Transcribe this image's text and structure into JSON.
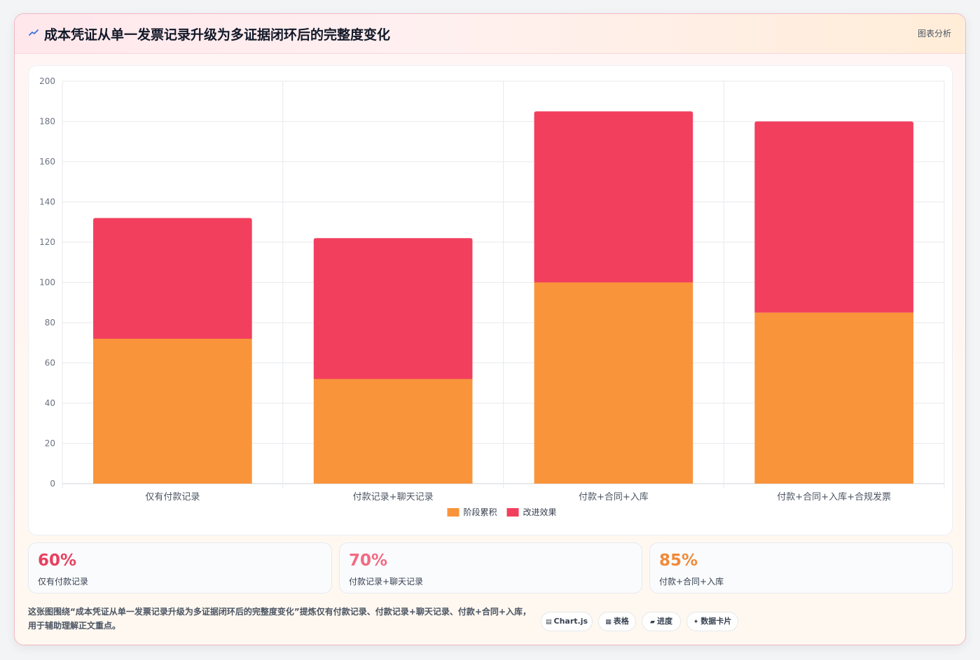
{
  "header": {
    "title": "成本凭证从单一发票记录升级为多证据闭环后的完整度变化",
    "tag": "图表分析"
  },
  "chart_data": {
    "type": "bar",
    "stacked": true,
    "categories": [
      "仅有付款记录",
      "付款记录+聊天记录",
      "付款+合同+入库",
      "付款+合同+入库+合规发票"
    ],
    "series": [
      {
        "name": "阶段累积",
        "values": [
          72,
          52,
          100,
          85
        ],
        "color": "#f9943b"
      },
      {
        "name": "改进效果",
        "values": [
          60,
          70,
          85,
          95
        ],
        "color": "#f23f5e"
      }
    ],
    "ylim": [
      0,
      200
    ],
    "yticks": [
      0,
      20,
      40,
      60,
      80,
      100,
      120,
      140,
      160,
      180,
      200
    ],
    "grid": true,
    "legend_position": "bottom"
  },
  "stats": [
    {
      "value": "60%",
      "label": "仅有付款记录",
      "color": "#e8405f"
    },
    {
      "value": "70%",
      "label": "付款记录+聊天记录",
      "color": "#f26a82"
    },
    {
      "value": "85%",
      "label": "付款+合同+入库",
      "color": "#f08a3a"
    }
  ],
  "description": "这张图围绕“成本凭证从单一发票记录升级为多证据闭环后的完整度变化”提炼仅有付款记录、付款记录+聊天记录、付款+合同+入库，用于辅助理解正文重点。",
  "chips": [
    {
      "icon": "bar-chart-icon",
      "label": "Chart.js"
    },
    {
      "icon": "table-icon",
      "label": "表格"
    },
    {
      "icon": "progress-icon",
      "label": "进度"
    },
    {
      "icon": "sparkle-icon",
      "label": "数据卡片"
    }
  ]
}
